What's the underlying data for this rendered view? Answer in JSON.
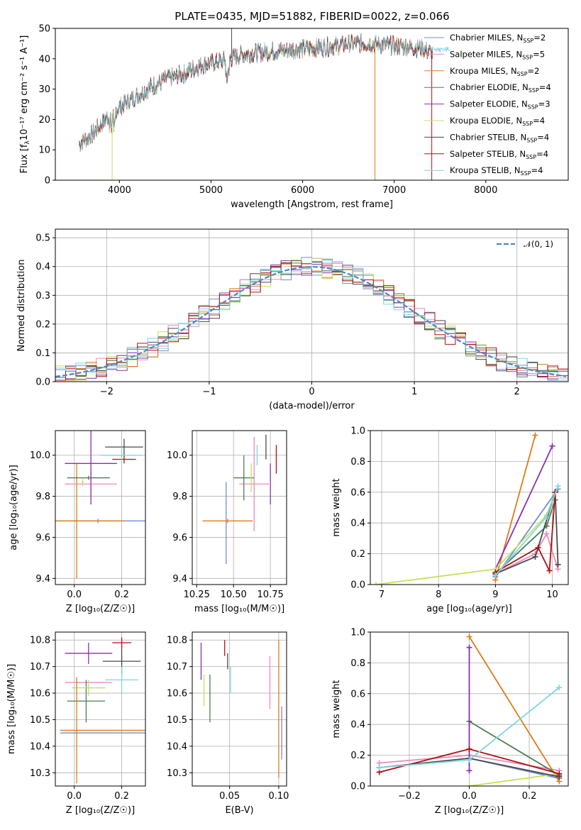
{
  "colors": {
    "chabrier_miles": "#6f8fd6",
    "salpeter_miles": "#e98cbf",
    "kroupa_miles": "#e07b1a",
    "chabrier_elodie": "#4f7d55",
    "salpeter_elodie": "#8b2fb0",
    "kroupa_elodie": "#c8e05a",
    "chabrier_stelib": "#4a4a4a",
    "salpeter_stelib": "#b01010",
    "kroupa_stelib": "#7fd6e0",
    "normal_fit": "#4f86c6"
  },
  "chart_data": [
    {
      "id": "spectrum",
      "type": "line",
      "title": "PLATE=0435, MJD=51882, FIBERID=0022, z=0.066",
      "xlabel": "wavelength [Angstrom, rest frame]",
      "ylabel_main": "Flux [f",
      "ylabel_sub": "λ",
      "ylabel_rest": "10⁻¹⁷ erg cm⁻² s⁻¹ A⁻¹]",
      "xlim": [
        3300,
        8900
      ],
      "ylim": [
        0,
        50
      ],
      "xticks": [
        4000,
        5000,
        6000,
        7000,
        8000
      ],
      "yticks": [
        0,
        10,
        20,
        30,
        40,
        50
      ],
      "grid": false,
      "legend_placement": "right",
      "legend": [
        {
          "key": "chabrier_miles",
          "label": "Chabrier MILES, N",
          "sub": "SSP",
          "tail": "=2"
        },
        {
          "key": "salpeter_miles",
          "label": "Salpeter MILES, N",
          "sub": "SSP",
          "tail": "=5"
        },
        {
          "key": "kroupa_miles",
          "label": "Kroupa MILES, N",
          "sub": "SSP",
          "tail": "=2"
        },
        {
          "key": "chabrier_elodie",
          "label": "Chabrier ELODIE, N",
          "sub": "SSP",
          "tail": "=4"
        },
        {
          "key": "salpeter_elodie",
          "label": "Salpeter ELODIE, N",
          "sub": "SSP",
          "tail": "=3"
        },
        {
          "key": "kroupa_elodie",
          "label": "Kroupa ELODIE, N",
          "sub": "SSP",
          "tail": "=4"
        },
        {
          "key": "chabrier_stelib",
          "label": "Chabrier STELIB, N",
          "sub": "SSP",
          "tail": "=4"
        },
        {
          "key": "salpeter_stelib",
          "label": "Salpeter STELIB, N",
          "sub": "SSP",
          "tail": "=4"
        },
        {
          "key": "kroupa_stelib",
          "label": "Kroupa STELIB, N",
          "sub": "SSP",
          "tail": "=4"
        }
      ],
      "continuum": [
        [
          3560,
          12
        ],
        [
          3700,
          15
        ],
        [
          3850,
          20
        ],
        [
          3950,
          23
        ],
        [
          4100,
          26
        ],
        [
          4300,
          30
        ],
        [
          4500,
          33
        ],
        [
          4700,
          35
        ],
        [
          4900,
          38
        ],
        [
          5100,
          39
        ],
        [
          5300,
          41
        ],
        [
          5500,
          42
        ],
        [
          5700,
          42.5
        ],
        [
          5900,
          43
        ],
        [
          6100,
          43.5
        ],
        [
          6300,
          44
        ],
        [
          6500,
          45
        ],
        [
          6700,
          45
        ],
        [
          6900,
          44.5
        ],
        [
          7100,
          44
        ],
        [
          7300,
          43.5
        ],
        [
          7400,
          42
        ]
      ],
      "spikes": [
        {
          "x": 5225,
          "y": 50,
          "key": "chabrier_stelib"
        },
        {
          "x": 6790,
          "y": 0,
          "key": "kroupa_miles"
        },
        {
          "x": 7410,
          "y": 0,
          "key": "salpeter_stelib"
        },
        {
          "x": 3920,
          "y": 0,
          "key": "kroupa_elodie"
        }
      ]
    },
    {
      "id": "residuals",
      "type": "histogram",
      "xlabel": "(data-model)/error",
      "ylabel": "Normed distribution",
      "xlim": [
        -2.5,
        2.5
      ],
      "ylim": [
        0,
        0.53
      ],
      "xticks": [
        -2,
        -1,
        0,
        1,
        2
      ],
      "yticks": [
        0.0,
        0.1,
        0.2,
        0.3,
        0.4,
        0.5
      ],
      "grid": true,
      "legend_placement": "top-right",
      "legend_label": "𝒩(0, 1)",
      "bin_width": 0.1
    },
    {
      "id": "age_vs_Z",
      "type": "scatter",
      "xlabel": "Z [log₁₀(Z/Z☉)]",
      "ylabel": "age  [log₁₀(age/yr)]",
      "xlim": [
        -0.08,
        0.3
      ],
      "ylim": [
        9.37,
        10.12
      ],
      "xticks": [
        0.0,
        0.2
      ],
      "yticks": [
        9.4,
        9.6,
        9.8,
        10.0
      ],
      "grid": true,
      "points": [
        {
          "key": "chabrier_miles",
          "x": 0.1,
          "y": 9.68,
          "xerr": 0.2,
          "yerr": 0.01
        },
        {
          "key": "kroupa_miles",
          "x": 0.01,
          "y": 9.68,
          "xerr": 0.2,
          "yerr": 0.28
        },
        {
          "key": "salpeter_miles",
          "x": 0.07,
          "y": 9.86,
          "xerr": 0.11,
          "yerr": 0.07
        },
        {
          "key": "chabrier_elodie",
          "x": 0.06,
          "y": 9.89,
          "xerr": 0.09,
          "yerr": 0.01
        },
        {
          "key": "salpeter_elodie",
          "x": 0.07,
          "y": 9.96,
          "xerr": 0.11,
          "yerr": 0.2
        },
        {
          "key": "kroupa_elodie",
          "x": 0.035,
          "y": 9.87,
          "xerr": 0.005,
          "yerr": 0.02
        },
        {
          "key": "chabrier_stelib",
          "x": 0.21,
          "y": 10.04,
          "xerr": 0.08,
          "yerr": 0.04
        },
        {
          "key": "salpeter_stelib",
          "x": 0.21,
          "y": 9.98,
          "xerr": 0.05,
          "yerr": 0.02
        },
        {
          "key": "kroupa_stelib",
          "x": 0.2,
          "y": 10.0,
          "xerr": 0.09,
          "yerr": 0.04
        }
      ]
    },
    {
      "id": "age_vs_mass",
      "type": "scatter",
      "xlabel": "mass [log₁₀(M/M☉)]",
      "ylabel": "",
      "xlim": [
        10.22,
        10.86
      ],
      "ylim": [
        9.37,
        10.12
      ],
      "xticks": [
        10.25,
        10.5,
        10.75
      ],
      "yticks": [
        9.4,
        9.6,
        9.8,
        10.0
      ],
      "grid": true,
      "points": [
        {
          "key": "chabrier_miles",
          "x": 10.45,
          "y": 9.67,
          "xerr": 0.0,
          "yerr": 0.2
        },
        {
          "key": "kroupa_miles",
          "x": 10.46,
          "y": 9.68,
          "xerr": 0.17,
          "yerr": 0.01
        },
        {
          "key": "salpeter_miles",
          "x": 10.64,
          "y": 9.86,
          "xerr": 0.1,
          "yerr": 0.23
        },
        {
          "key": "chabrier_elodie",
          "x": 10.57,
          "y": 9.89,
          "xerr": 0.07,
          "yerr": 0.11
        },
        {
          "key": "salpeter_elodie",
          "x": 10.75,
          "y": 9.86,
          "xerr": 0.0,
          "yerr": 0.1
        },
        {
          "key": "kroupa_elodie",
          "x": 10.62,
          "y": 9.89,
          "xerr": 0.0,
          "yerr": 0.07
        },
        {
          "key": "chabrier_stelib",
          "x": 10.72,
          "y": 10.04,
          "xerr": 0.0,
          "yerr": 0.06
        },
        {
          "key": "salpeter_stelib",
          "x": 10.79,
          "y": 9.98,
          "xerr": 0.0,
          "yerr": 0.07
        },
        {
          "key": "kroupa_stelib",
          "x": 10.66,
          "y": 10.0,
          "xerr": 0.0,
          "yerr": 0.05
        }
      ]
    },
    {
      "id": "massweight_vs_age",
      "type": "line",
      "xlabel": "age  [log₁₀(age/yr)]",
      "ylabel": "mass weight",
      "xlim": [
        6.8,
        10.28
      ],
      "ylim": [
        0,
        1
      ],
      "xticks": [
        7,
        8,
        9,
        10
      ],
      "yticks": [
        0.0,
        0.2,
        0.4,
        0.6,
        0.8,
        1.0
      ],
      "grid": true,
      "series": [
        {
          "key": "chabrier_miles",
          "x": [
            9.0,
            10.1
          ],
          "y": [
            0.05,
            0.62
          ]
        },
        {
          "key": "salpeter_miles",
          "x": [
            9.0,
            9.7,
            9.9,
            10.1
          ],
          "y": [
            0.07,
            0.2,
            0.33,
            0.1
          ]
        },
        {
          "key": "kroupa_miles",
          "x": [
            9.0,
            9.7
          ],
          "y": [
            0.03,
            0.97
          ]
        },
        {
          "key": "chabrier_elodie",
          "x": [
            9.0,
            9.9,
            10.05
          ],
          "y": [
            0.07,
            0.38,
            0.55
          ]
        },
        {
          "key": "salpeter_elodie",
          "x": [
            9.0,
            10.0
          ],
          "y": [
            0.1,
            0.9
          ]
        },
        {
          "key": "kroupa_elodie",
          "x": [
            6.9,
            9.0,
            9.9,
            10.05
          ],
          "y": [
            0.0,
            0.1,
            0.45,
            0.6
          ]
        },
        {
          "key": "chabrier_stelib",
          "x": [
            9.0,
            9.7,
            10.05,
            10.1
          ],
          "y": [
            0.07,
            0.18,
            0.6,
            0.13
          ]
        },
        {
          "key": "salpeter_stelib",
          "x": [
            9.0,
            9.75,
            9.95,
            10.05
          ],
          "y": [
            0.08,
            0.24,
            0.09,
            0.6
          ]
        },
        {
          "key": "kroupa_stelib",
          "x": [
            9.0,
            9.9,
            10.1
          ],
          "y": [
            0.06,
            0.44,
            0.64
          ]
        }
      ]
    },
    {
      "id": "mass_vs_Z",
      "type": "scatter",
      "xlabel": "Z [log₁₀(Z/Z☉)]",
      "ylabel": "mass [log₁₀(M/M☉)]",
      "xlim": [
        -0.08,
        0.3
      ],
      "ylim": [
        10.25,
        10.83
      ],
      "xticks": [
        0.0,
        0.2
      ],
      "yticks": [
        10.3,
        10.4,
        10.5,
        10.6,
        10.7,
        10.8
      ],
      "grid": true,
      "points": [
        {
          "key": "chabrier_miles",
          "x": 0.12,
          "y": 10.45,
          "xerr": 0.18,
          "yerr": 0.0
        },
        {
          "key": "kroupa_miles",
          "x": 0.12,
          "y": 10.46,
          "xerr": 0.18,
          "yerr": 0.0
        },
        {
          "key": "salpeter_miles",
          "x": 0.06,
          "y": 10.64,
          "xerr": 0.1,
          "yerr": 0.0
        },
        {
          "key": "chabrier_elodie",
          "x": 0.05,
          "y": 10.57,
          "xerr": 0.08,
          "yerr": 0.08
        },
        {
          "key": "salpeter_elodie",
          "x": 0.06,
          "y": 10.75,
          "xerr": 0.1,
          "yerr": 0.04
        },
        {
          "key": "kroupa_elodie",
          "x": 0.06,
          "y": 10.62,
          "xerr": 0.07,
          "yerr": 0.03
        },
        {
          "key": "chabrier_stelib",
          "x": 0.2,
          "y": 10.72,
          "xerr": 0.08,
          "yerr": 0.05
        },
        {
          "key": "salpeter_stelib",
          "x": 0.2,
          "y": 10.79,
          "xerr": 0.04,
          "yerr": 0.02
        },
        {
          "key": "kroupa_stelib",
          "x": 0.2,
          "y": 10.65,
          "xerr": 0.07,
          "yerr": 0.05
        },
        {
          "key": "kroupa_miles",
          "x": 0.01,
          "y": 10.46,
          "xerr": 0.0,
          "yerr": 0.2
        }
      ]
    },
    {
      "id": "mass_vs_ebv",
      "type": "scatter",
      "xlabel": "E(B-V)",
      "ylabel": "",
      "xlim": [
        0.012,
        0.108
      ],
      "ylim": [
        10.25,
        10.83
      ],
      "xticks": [
        0.05,
        0.1
      ],
      "yticks": [
        10.3,
        10.4,
        10.5,
        10.6,
        10.7,
        10.8
      ],
      "grid": true,
      "points": [
        {
          "key": "salpeter_elodie",
          "x": 0.021,
          "y": 10.72,
          "xerr": 0.0,
          "yerr": 0.07
        },
        {
          "key": "kroupa_elodie",
          "x": 0.024,
          "y": 10.61,
          "xerr": 0.0,
          "yerr": 0.06
        },
        {
          "key": "chabrier_elodie",
          "x": 0.03,
          "y": 10.58,
          "xerr": 0.0,
          "yerr": 0.09
        },
        {
          "key": "chabrier_stelib",
          "x": 0.048,
          "y": 10.72,
          "xerr": 0.0,
          "yerr": 0.03
        },
        {
          "key": "salpeter_stelib",
          "x": 0.045,
          "y": 10.77,
          "xerr": 0.0,
          "yerr": 0.03
        },
        {
          "key": "kroupa_stelib",
          "x": 0.051,
          "y": 10.65,
          "xerr": 0.0,
          "yerr": 0.05
        },
        {
          "key": "salpeter_miles",
          "x": 0.091,
          "y": 10.64,
          "xerr": 0.0,
          "yerr": 0.1
        },
        {
          "key": "kroupa_miles",
          "x": 0.1,
          "y": 10.54,
          "xerr": 0.0,
          "yerr": 0.26
        },
        {
          "key": "chabrier_miles",
          "x": 0.103,
          "y": 10.45,
          "xerr": 0.0,
          "yerr": 0.1
        }
      ]
    },
    {
      "id": "massweight_vs_Z",
      "type": "line",
      "xlabel": "Z [log₁₀(Z/Z☉)]",
      "ylabel": "mass weight",
      "xlim": [
        -0.33,
        0.33
      ],
      "ylim": [
        0,
        1
      ],
      "xticks": [
        -0.2,
        0.0,
        0.2
      ],
      "yticks": [
        0.0,
        0.2,
        0.4,
        0.6,
        0.8,
        1.0
      ],
      "grid": true,
      "series": [
        {
          "key": "chabrier_miles",
          "x": [
            0.0,
            0.3
          ],
          "y": [
            0.18,
            0.05
          ]
        },
        {
          "key": "salpeter_miles",
          "x": [
            -0.3,
            0.0,
            0.3
          ],
          "y": [
            0.15,
            0.2,
            0.1
          ]
        },
        {
          "key": "kroupa_miles",
          "x": [
            0.0,
            0.3
          ],
          "y": [
            0.97,
            0.03
          ]
        },
        {
          "key": "chabrier_elodie",
          "x": [
            0.0,
            0.3
          ],
          "y": [
            0.42,
            0.07
          ]
        },
        {
          "key": "salpeter_elodie",
          "x": [
            0.0,
            0.0
          ],
          "y": [
            0.1,
            0.9
          ]
        },
        {
          "key": "kroupa_elodie",
          "x": [
            0.0,
            0.3
          ],
          "y": [
            0.0,
            0.08
          ]
        },
        {
          "key": "chabrier_stelib",
          "x": [
            -0.3,
            0.0,
            0.3
          ],
          "y": [
            0.12,
            0.18,
            0.06
          ]
        },
        {
          "key": "salpeter_stelib",
          "x": [
            -0.3,
            0.0,
            0.3
          ],
          "y": [
            0.09,
            0.24,
            0.08
          ]
        },
        {
          "key": "kroupa_stelib",
          "x": [
            -0.3,
            0.0,
            0.3
          ],
          "y": [
            0.12,
            0.17,
            0.64
          ]
        }
      ]
    }
  ]
}
